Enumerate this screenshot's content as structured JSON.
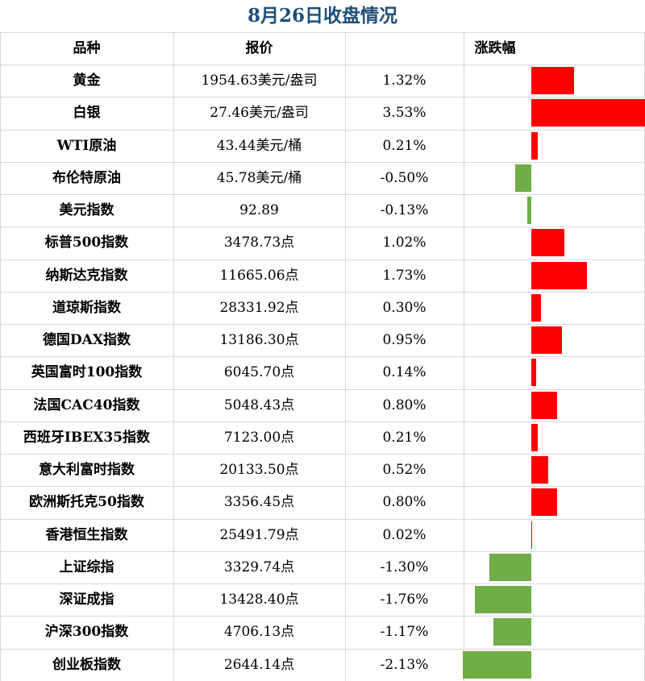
{
  "title": "8月26日收盘情况",
  "columns": [
    "品种",
    "报价",
    "涨跌幅"
  ],
  "colors": {
    "up": "#ff0000",
    "down": "#70ad47",
    "title": "#1e4e79",
    "grid": "#d9d9d9"
  },
  "chart_data": {
    "type": "table",
    "title": "8月26日收盘情况",
    "columns": [
      "品种",
      "报价",
      "涨跌幅"
    ],
    "rows": [
      {
        "name": "黄金",
        "price": "1954.63美元/盎司",
        "change_text": "1.32%",
        "change": 1.32
      },
      {
        "name": "白银",
        "price": "27.46美元/盎司",
        "change_text": "3.53%",
        "change": 3.53
      },
      {
        "name": "WTI原油",
        "price": "43.44美元/桶",
        "change_text": "0.21%",
        "change": 0.21
      },
      {
        "name": "布伦特原油",
        "price": "45.78美元/桶",
        "change_text": "-0.50%",
        "change": -0.5
      },
      {
        "name": "美元指数",
        "price": "92.89",
        "change_text": "-0.13%",
        "change": -0.13
      },
      {
        "name": "标普500指数",
        "price": "3478.73点",
        "change_text": "1.02%",
        "change": 1.02
      },
      {
        "name": "纳斯达克指数",
        "price": "11665.06点",
        "change_text": "1.73%",
        "change": 1.73
      },
      {
        "name": "道琼斯指数",
        "price": "28331.92点",
        "change_text": "0.30%",
        "change": 0.3
      },
      {
        "name": "德国DAX指数",
        "price": "13186.30点",
        "change_text": "0.95%",
        "change": 0.95
      },
      {
        "name": "英国富时100指数",
        "price": "6045.70点",
        "change_text": "0.14%",
        "change": 0.14
      },
      {
        "name": "法国CAC40指数",
        "price": "5048.43点",
        "change_text": "0.80%",
        "change": 0.8
      },
      {
        "name": "西班牙IBEX35指数",
        "price": "7123.00点",
        "change_text": "0.21%",
        "change": 0.21
      },
      {
        "name": "意大利富时指数",
        "price": "20133.50点",
        "change_text": "0.52%",
        "change": 0.52
      },
      {
        "name": "欧洲斯托克50指数",
        "price": "3356.45点",
        "change_text": "0.80%",
        "change": 0.8
      },
      {
        "name": "香港恒生指数",
        "price": "25491.79点",
        "change_text": "0.02%",
        "change": 0.02
      },
      {
        "name": "上证综指",
        "price": "3329.74点",
        "change_text": "-1.30%",
        "change": -1.3
      },
      {
        "name": "深证成指",
        "price": "13428.40点",
        "change_text": "-1.76%",
        "change": -1.76
      },
      {
        "name": "沪深300指数",
        "price": "4706.13点",
        "change_text": "-1.17%",
        "change": -1.17
      },
      {
        "name": "创业板指数",
        "price": "2644.14点",
        "change_text": "-2.13%",
        "change": -2.13
      }
    ],
    "bar_range": [
      -2.13,
      3.53
    ]
  }
}
